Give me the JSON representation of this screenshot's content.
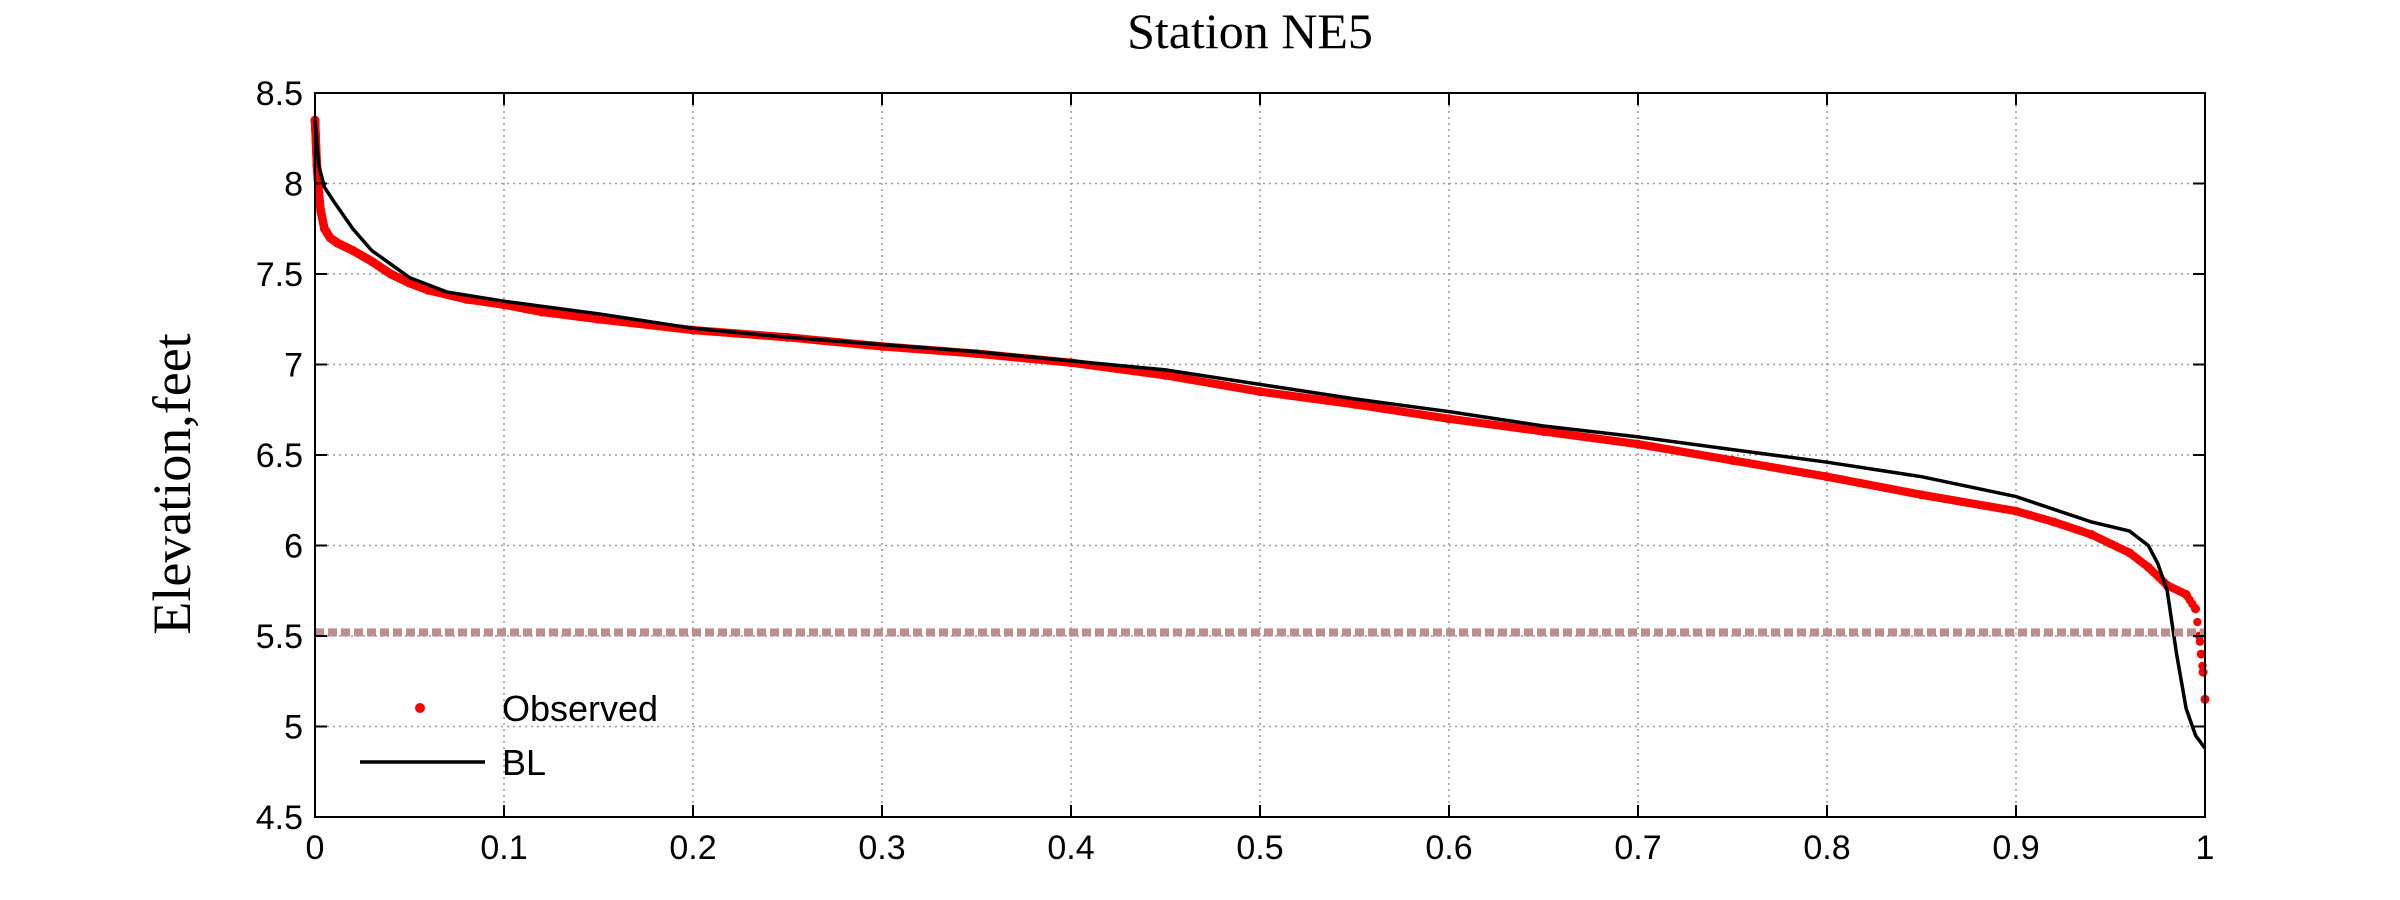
{
  "chart_data": {
    "type": "line",
    "title": "Station NE5",
    "xlabel": "",
    "ylabel": "Elevation,feet",
    "xlim": [
      0,
      1
    ],
    "ylim": [
      4.5,
      8.5
    ],
    "x_ticks": [
      "0",
      "0.1",
      "0.2",
      "0.3",
      "0.4",
      "0.5",
      "0.6",
      "0.7",
      "0.8",
      "0.9",
      "1"
    ],
    "y_ticks": [
      "4.5",
      "5",
      "5.5",
      "6",
      "6.5",
      "7",
      "7.5",
      "8",
      "8.5"
    ],
    "grid": true,
    "legend_position": "bottom-left",
    "series": [
      {
        "name": "Observed",
        "style": "dots",
        "color": "#ff0000",
        "x": [
          0,
          0.001,
          0.002,
          0.003,
          0.005,
          0.008,
          0.012,
          0.02,
          0.03,
          0.04,
          0.05,
          0.06,
          0.08,
          0.1,
          0.12,
          0.15,
          0.2,
          0.25,
          0.3,
          0.35,
          0.4,
          0.45,
          0.5,
          0.55,
          0.6,
          0.65,
          0.7,
          0.75,
          0.8,
          0.85,
          0.9,
          0.92,
          0.94,
          0.96,
          0.97,
          0.98,
          0.99,
          0.995,
          0.997,
          0.998,
          0.999,
          1.0
        ],
        "y": [
          8.35,
          8.1,
          7.95,
          7.85,
          7.75,
          7.7,
          7.67,
          7.63,
          7.57,
          7.5,
          7.45,
          7.41,
          7.36,
          7.33,
          7.29,
          7.25,
          7.19,
          7.15,
          7.1,
          7.06,
          7.01,
          6.94,
          6.85,
          6.78,
          6.7,
          6.63,
          6.56,
          6.47,
          6.38,
          6.28,
          6.19,
          6.13,
          6.06,
          5.96,
          5.88,
          5.78,
          5.73,
          5.65,
          5.5,
          5.4,
          5.3,
          5.15
        ]
      },
      {
        "name": "BL",
        "style": "line",
        "color": "#000000",
        "x": [
          0,
          0.002,
          0.005,
          0.01,
          0.02,
          0.03,
          0.05,
          0.07,
          0.1,
          0.15,
          0.2,
          0.25,
          0.3,
          0.35,
          0.4,
          0.45,
          0.5,
          0.55,
          0.6,
          0.65,
          0.7,
          0.75,
          0.8,
          0.85,
          0.9,
          0.92,
          0.94,
          0.96,
          0.97,
          0.975,
          0.98,
          0.985,
          0.99,
          0.995,
          1.0
        ],
        "y": [
          8.35,
          8.1,
          7.98,
          7.9,
          7.75,
          7.63,
          7.48,
          7.4,
          7.35,
          7.28,
          7.2,
          7.15,
          7.11,
          7.07,
          7.02,
          6.97,
          6.89,
          6.81,
          6.74,
          6.66,
          6.6,
          6.53,
          6.46,
          6.38,
          6.27,
          6.2,
          6.13,
          6.08,
          6.0,
          5.9,
          5.75,
          5.4,
          5.1,
          4.95,
          4.88
        ]
      },
      {
        "name": "",
        "style": "dashed-reference",
        "color": "#bc8f8f",
        "x": [
          0,
          1
        ],
        "y": [
          5.52,
          5.52
        ]
      }
    ]
  }
}
